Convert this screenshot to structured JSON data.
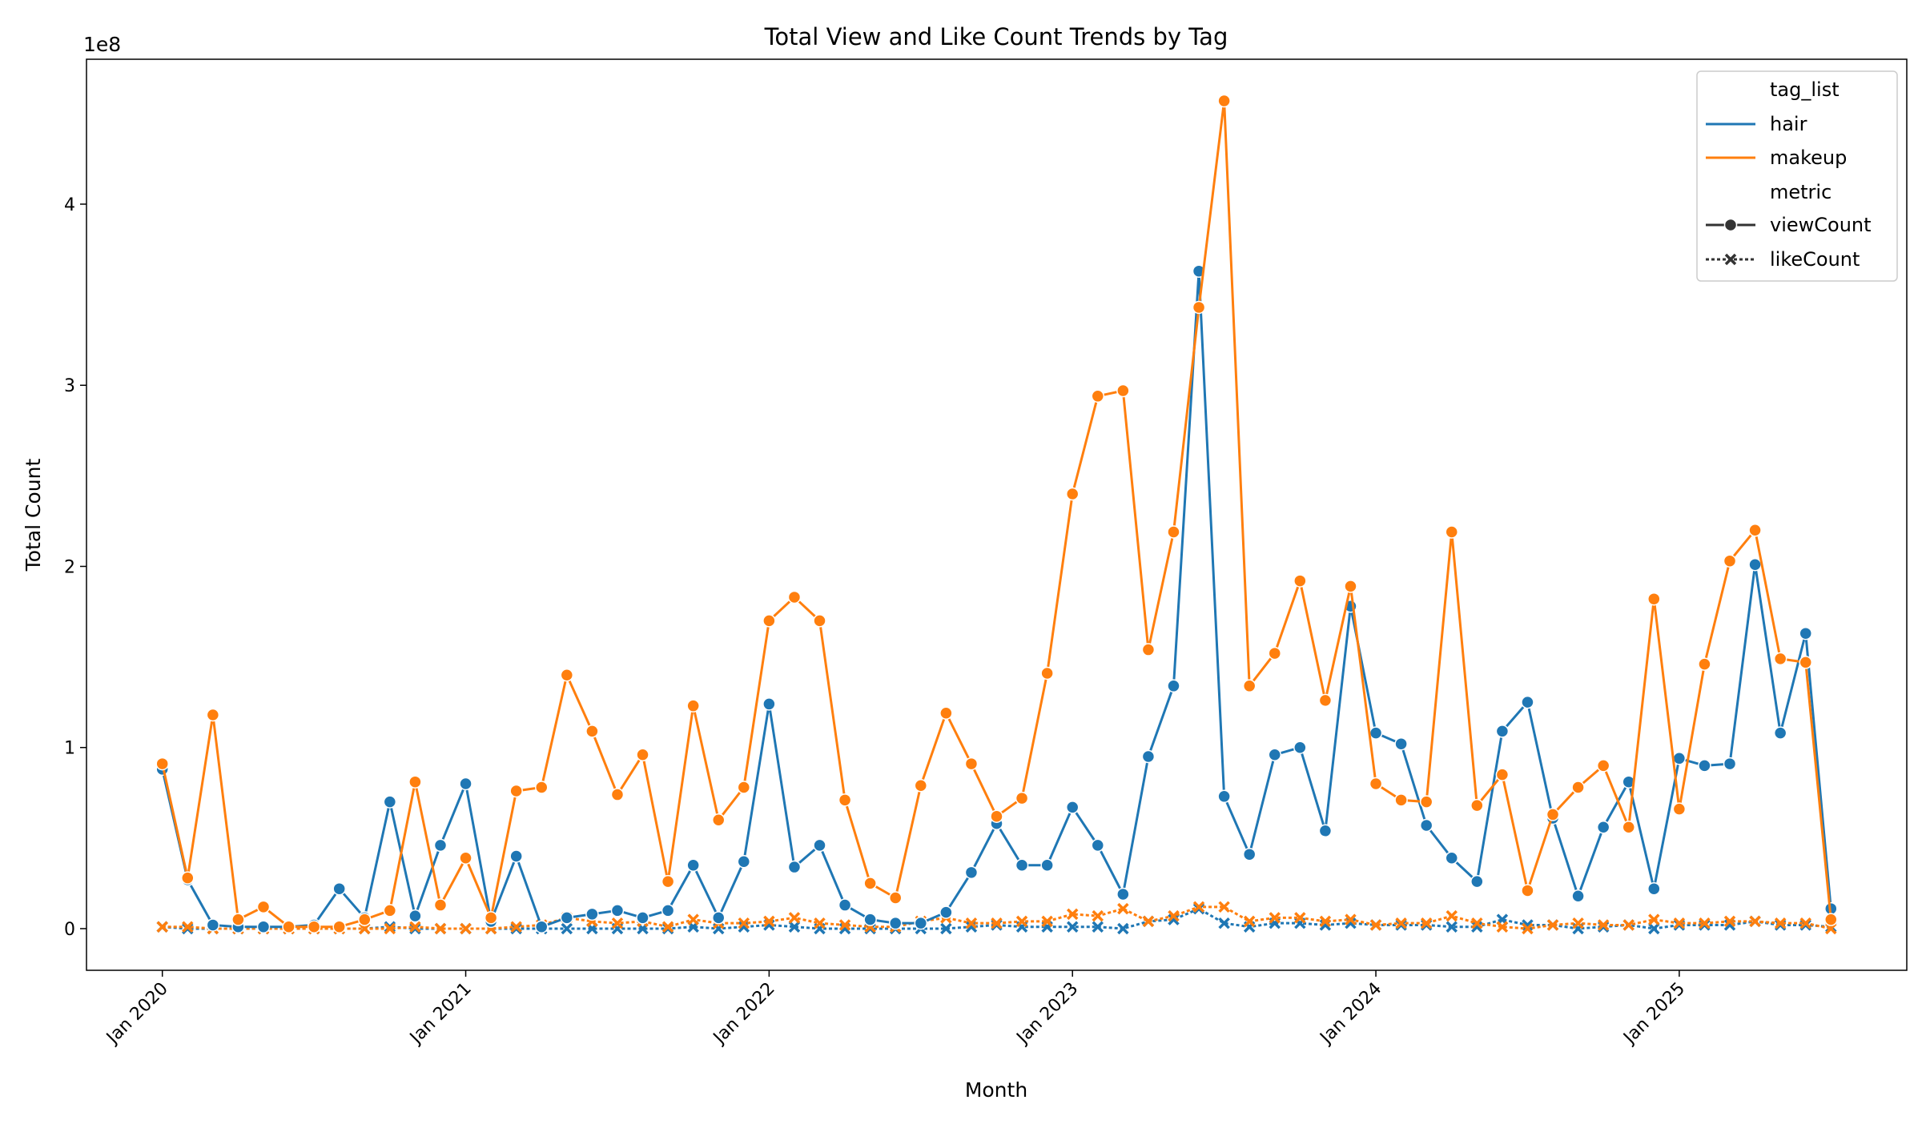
{
  "chart_data": {
    "type": "line",
    "title": "Total View and Like Count Trends by Tag",
    "xlabel": "Month",
    "ylabel": "Total Count",
    "y_offset_label": "1e8",
    "legend_titles": [
      "tag_list",
      "metric"
    ],
    "legend": "upper right",
    "x": [
      "2020-01",
      "2020-02",
      "2020-03",
      "2020-04",
      "2020-05",
      "2020-06",
      "2020-07",
      "2020-08",
      "2020-09",
      "2020-10",
      "2020-11",
      "2020-12",
      "2021-01",
      "2021-02",
      "2021-03",
      "2021-04",
      "2021-05",
      "2021-06",
      "2021-07",
      "2021-08",
      "2021-09",
      "2021-10",
      "2021-11",
      "2021-12",
      "2022-01",
      "2022-02",
      "2022-03",
      "2022-04",
      "2022-05",
      "2022-06",
      "2022-07",
      "2022-08",
      "2022-09",
      "2022-10",
      "2022-11",
      "2022-12",
      "2023-01",
      "2023-02",
      "2023-03",
      "2023-04",
      "2023-05",
      "2023-06",
      "2023-07",
      "2023-08",
      "2023-09",
      "2023-10",
      "2023-11",
      "2023-12",
      "2024-01",
      "2024-02",
      "2024-03",
      "2024-04",
      "2024-05",
      "2024-06",
      "2024-07",
      "2024-08",
      "2024-09",
      "2024-10",
      "2024-11",
      "2024-12",
      "2025-01",
      "2025-02",
      "2025-03",
      "2025-04",
      "2025-05",
      "2025-06",
      "2025-07"
    ],
    "series": [
      {
        "tag": "hair",
        "metric": "viewCount",
        "color": "#1f77b4",
        "style": "solid",
        "marker": "circle",
        "values": [
          0.88,
          0.27,
          0.02,
          0.01,
          0.01,
          0.01,
          0.02,
          0.22,
          0.06,
          0.7,
          0.07,
          0.46,
          0.8,
          0.04,
          0.4,
          0.01,
          0.06,
          0.08,
          0.1,
          0.06,
          0.1,
          0.35,
          0.06,
          0.37,
          1.24,
          0.34,
          0.46,
          0.13,
          0.05,
          0.03,
          0.03,
          0.09,
          0.31,
          0.58,
          0.35,
          0.35,
          0.67,
          0.46,
          0.19,
          0.95,
          1.34,
          3.63,
          0.73,
          0.41,
          0.96,
          1.0,
          0.54,
          1.78,
          1.08,
          1.02,
          0.57,
          0.39,
          0.26,
          1.09,
          1.25,
          0.61,
          0.18,
          0.56,
          0.81,
          0.22,
          0.94,
          0.9,
          0.91,
          2.01,
          1.08,
          1.63,
          0.11
        ]
      },
      {
        "tag": "makeup",
        "metric": "viewCount",
        "color": "#ff7f0e",
        "style": "solid",
        "marker": "circle",
        "values": [
          0.91,
          0.28,
          1.18,
          0.05,
          0.12,
          0.01,
          0.01,
          0.01,
          0.05,
          0.1,
          0.81,
          0.13,
          0.39,
          0.06,
          0.76,
          0.78,
          1.4,
          1.09,
          0.74,
          0.96,
          0.26,
          1.23,
          0.6,
          0.78,
          1.7,
          1.83,
          1.7,
          0.71,
          0.25,
          0.17,
          0.79,
          1.19,
          0.91,
          0.62,
          0.72,
          1.41,
          2.4,
          2.94,
          2.97,
          1.54,
          2.19,
          3.43,
          4.57,
          1.34,
          1.52,
          1.92,
          1.26,
          1.89,
          0.8,
          0.71,
          0.7,
          2.19,
          0.68,
          0.85,
          0.21,
          0.63,
          0.78,
          0.9,
          0.56,
          1.82,
          0.66,
          1.46,
          2.03,
          2.2,
          1.49,
          1.47,
          0.05
        ]
      },
      {
        "tag": "hair",
        "metric": "likeCount",
        "color": "#1f77b4",
        "style": "dashed",
        "marker": "x",
        "values": [
          0.01,
          0.0,
          0.0,
          0.0,
          0.0,
          0.0,
          0.0,
          0.0,
          0.0,
          0.01,
          0.0,
          0.0,
          0.0,
          0.0,
          0.0,
          0.0,
          0.0,
          0.0,
          0.0,
          0.0,
          0.0,
          0.01,
          0.0,
          0.01,
          0.02,
          0.01,
          0.0,
          0.0,
          0.0,
          0.0,
          0.0,
          0.0,
          0.01,
          0.02,
          0.01,
          0.01,
          0.01,
          0.01,
          0.0,
          0.04,
          0.05,
          0.11,
          0.03,
          0.01,
          0.03,
          0.03,
          0.02,
          0.03,
          0.02,
          0.02,
          0.02,
          0.01,
          0.01,
          0.05,
          0.02,
          0.02,
          0.0,
          0.01,
          0.02,
          0.0,
          0.02,
          0.02,
          0.02,
          0.04,
          0.02,
          0.02,
          0.01
        ]
      },
      {
        "tag": "makeup",
        "metric": "likeCount",
        "color": "#ff7f0e",
        "style": "dashed",
        "marker": "x",
        "values": [
          0.01,
          0.01,
          0.0,
          0.0,
          0.0,
          0.0,
          0.0,
          0.0,
          0.0,
          0.0,
          0.01,
          0.0,
          0.0,
          0.0,
          0.01,
          0.02,
          0.06,
          0.04,
          0.03,
          0.04,
          0.01,
          0.05,
          0.03,
          0.03,
          0.04,
          0.06,
          0.03,
          0.02,
          0.01,
          0.01,
          0.04,
          0.06,
          0.03,
          0.03,
          0.04,
          0.04,
          0.08,
          0.07,
          0.11,
          0.04,
          0.07,
          0.12,
          0.12,
          0.04,
          0.06,
          0.06,
          0.04,
          0.05,
          0.02,
          0.03,
          0.03,
          0.07,
          0.03,
          0.01,
          0.0,
          0.02,
          0.03,
          0.02,
          0.02,
          0.05,
          0.03,
          0.03,
          0.04,
          0.04,
          0.03,
          0.03,
          0.0
        ]
      }
    ],
    "xlim": [
      "2019-10",
      "2025-10"
    ],
    "xticks": [
      {
        "value": "2020-01",
        "label": "Jan 2020"
      },
      {
        "value": "2021-01",
        "label": "Jan 2021"
      },
      {
        "value": "2022-01",
        "label": "Jan 2022"
      },
      {
        "value": "2023-01",
        "label": "Jan 2023"
      },
      {
        "value": "2024-01",
        "label": "Jan 2024"
      },
      {
        "value": "2025-01",
        "label": "Jan 2025"
      }
    ],
    "ylim": [
      -0.23,
      4.8
    ],
    "yticks": [
      0,
      1,
      2,
      3,
      4
    ],
    "grid": false
  }
}
